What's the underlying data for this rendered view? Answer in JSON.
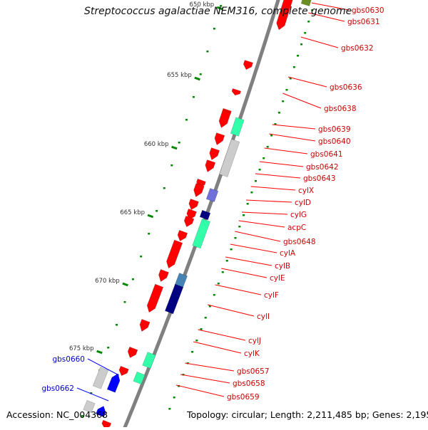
{
  "title": "Streptococcus agalactiae NEM316, complete genome",
  "footer": {
    "accession": "Accession: NC_004368",
    "summary": "Topology: circular; Length: 2,211,485 bp; Genes: 2,195"
  },
  "scale_labels": [
    "650 kbp",
    "655 kbp",
    "660 kbp",
    "665 kbp",
    "670 kbp",
    "675 kbp"
  ],
  "colors": {
    "backbone": "#808080",
    "forward_gene": "#ff0000",
    "reverse_gene": "#0000ff",
    "label_forward": "#cc0000",
    "label_reverse": "#0000cc",
    "tick": "#008800",
    "feature_green": "#33ffaa",
    "feature_gray": "#cccccc",
    "feature_navy": "#000080",
    "feature_purple": "#7070dd",
    "feature_steel": "#4682b4",
    "feature_olive": "#6b8e23"
  },
  "right_labels": [
    "gbs0630",
    "gbs0631",
    "gbs0632",
    "gbs0636",
    "gbs0638",
    "gbs0639",
    "gbs0640",
    "gbs0641",
    "gbs0642",
    "gbs0643",
    "cylX",
    "cylD",
    "cylG",
    "acpC",
    "gbs0648",
    "cylA",
    "cylB",
    "cylE",
    "cylF",
    "cylI",
    "cylJ",
    "cylK",
    "gbs0657",
    "gbs0658",
    "gbs0659"
  ],
  "left_labels": [
    "gbs0660",
    "gbs0662"
  ]
}
